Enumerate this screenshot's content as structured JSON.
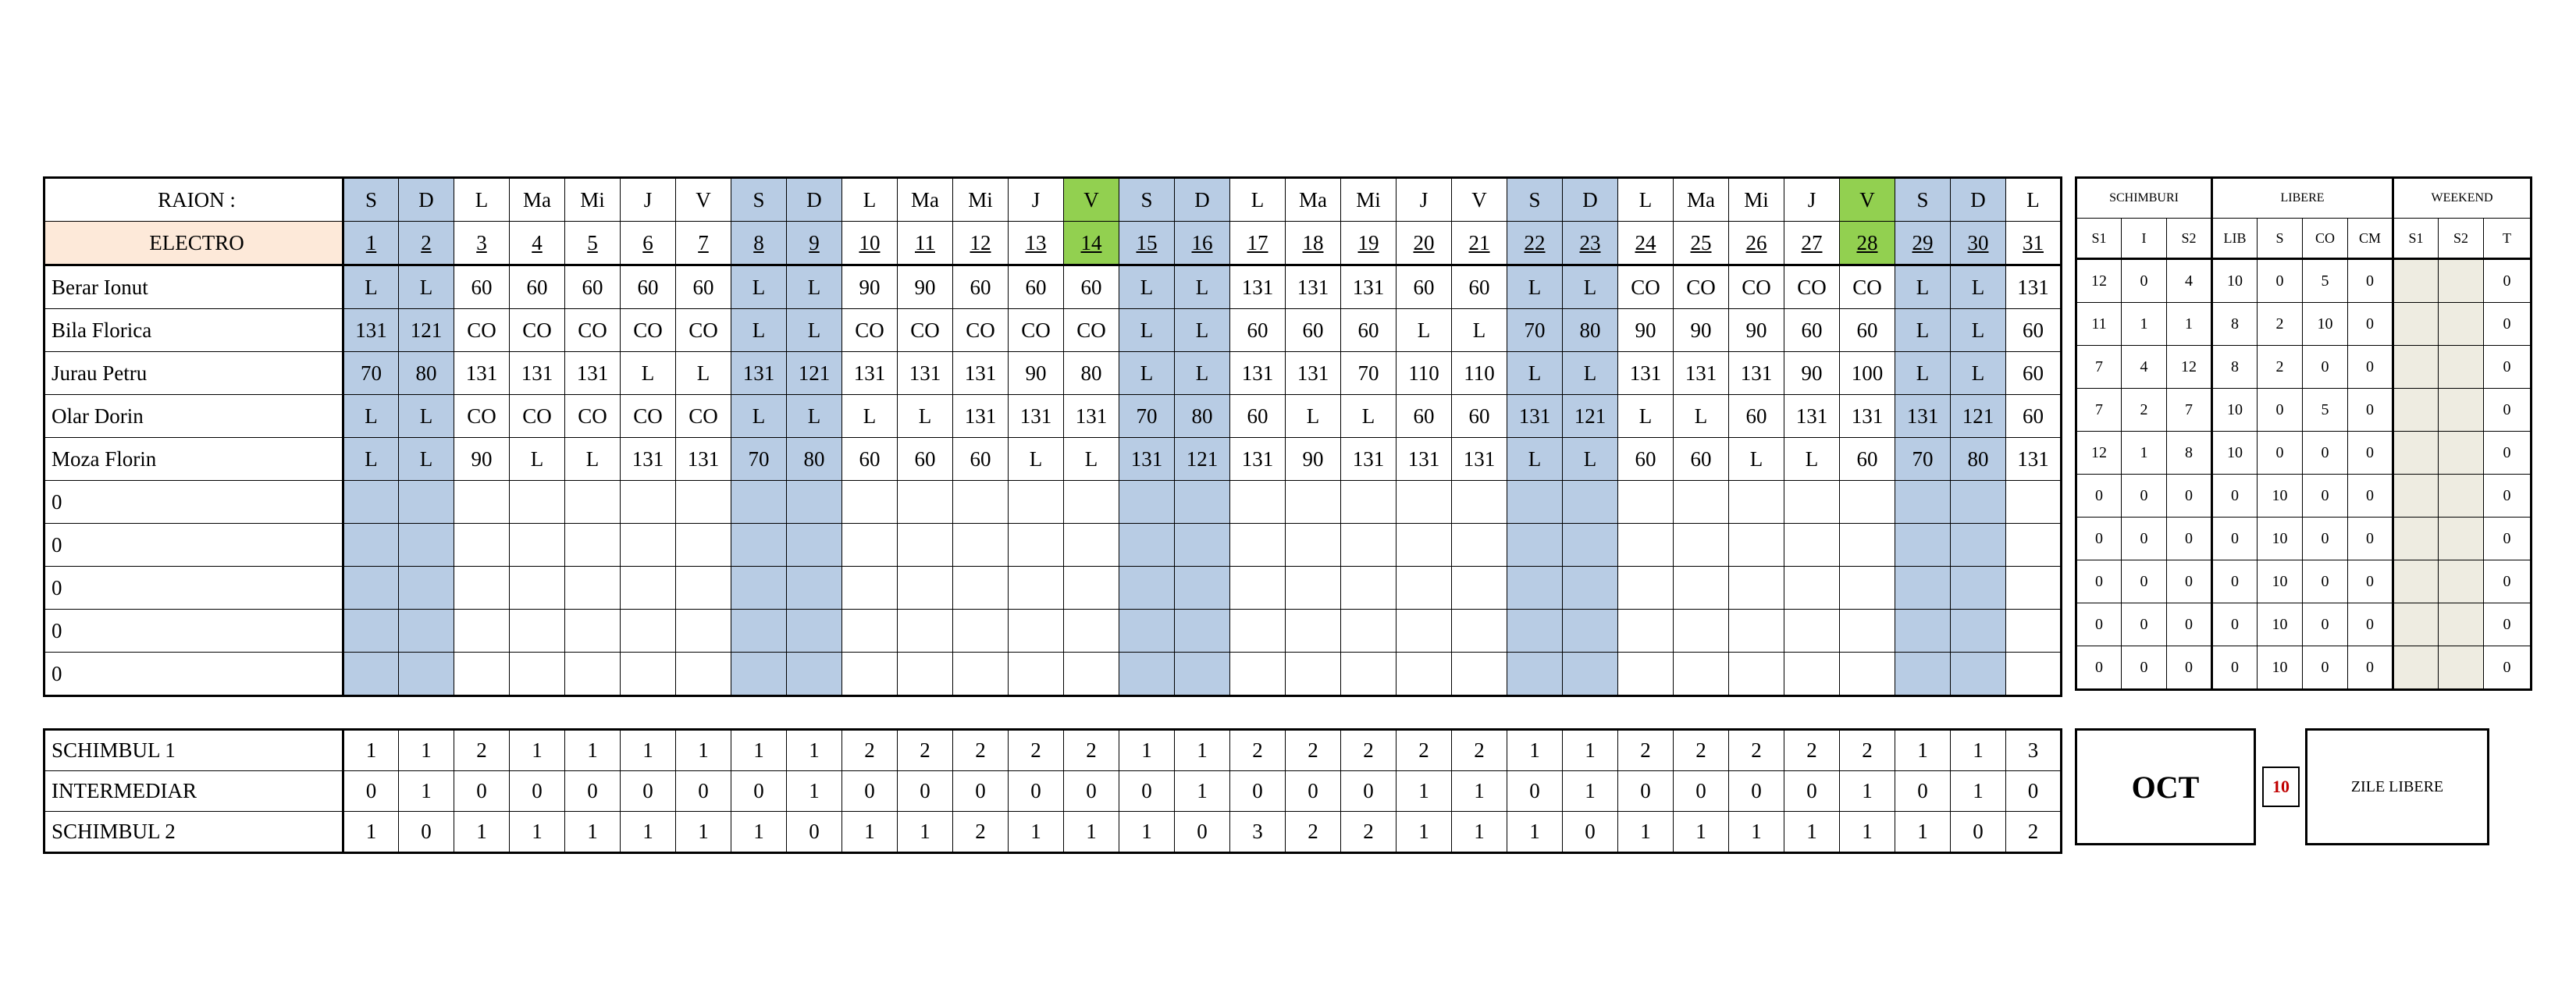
{
  "header": {
    "raion_label": "RAION :",
    "dept": "ELECTRO"
  },
  "days": [
    {
      "w": "S",
      "d": "1",
      "t": "wk"
    },
    {
      "w": "D",
      "d": "2",
      "t": "wk"
    },
    {
      "w": "L",
      "d": "3",
      "t": ""
    },
    {
      "w": "Ma",
      "d": "4",
      "t": ""
    },
    {
      "w": "Mi",
      "d": "5",
      "t": ""
    },
    {
      "w": "J",
      "d": "6",
      "t": ""
    },
    {
      "w": "V",
      "d": "7",
      "t": ""
    },
    {
      "w": "S",
      "d": "8",
      "t": "wk"
    },
    {
      "w": "D",
      "d": "9",
      "t": "wk"
    },
    {
      "w": "L",
      "d": "10",
      "t": ""
    },
    {
      "w": "Ma",
      "d": "11",
      "t": ""
    },
    {
      "w": "Mi",
      "d": "12",
      "t": ""
    },
    {
      "w": "J",
      "d": "13",
      "t": ""
    },
    {
      "w": "V",
      "d": "14",
      "t": "hol"
    },
    {
      "w": "S",
      "d": "15",
      "t": "wk"
    },
    {
      "w": "D",
      "d": "16",
      "t": "wk"
    },
    {
      "w": "L",
      "d": "17",
      "t": ""
    },
    {
      "w": "Ma",
      "d": "18",
      "t": ""
    },
    {
      "w": "Mi",
      "d": "19",
      "t": ""
    },
    {
      "w": "J",
      "d": "20",
      "t": ""
    },
    {
      "w": "V",
      "d": "21",
      "t": ""
    },
    {
      "w": "S",
      "d": "22",
      "t": "wk"
    },
    {
      "w": "D",
      "d": "23",
      "t": "wk"
    },
    {
      "w": "L",
      "d": "24",
      "t": ""
    },
    {
      "w": "Ma",
      "d": "25",
      "t": ""
    },
    {
      "w": "Mi",
      "d": "26",
      "t": ""
    },
    {
      "w": "J",
      "d": "27",
      "t": ""
    },
    {
      "w": "V",
      "d": "28",
      "t": "hol"
    },
    {
      "w": "S",
      "d": "29",
      "t": "wk"
    },
    {
      "w": "D",
      "d": "30",
      "t": "wk"
    },
    {
      "w": "L",
      "d": "31",
      "t": ""
    }
  ],
  "employees": [
    {
      "name": "Berar Ionut",
      "shifts": [
        "L",
        "L",
        "60",
        "60",
        "60",
        "60",
        "60",
        "L",
        "L",
        "90",
        "90",
        "60",
        "60",
        "60",
        "L",
        "L",
        "131",
        "131",
        "131",
        "60",
        "60",
        "L",
        "L",
        "CO",
        "CO",
        "CO",
        "CO",
        "CO",
        "L",
        "L",
        "131"
      ],
      "summary": [
        "12",
        "0",
        "4",
        "10",
        "0",
        "5",
        "0",
        "",
        "",
        "0"
      ]
    },
    {
      "name": "Bila Florica",
      "shifts": [
        "131",
        "121",
        "CO",
        "CO",
        "CO",
        "CO",
        "CO",
        "L",
        "L",
        "CO",
        "CO",
        "CO",
        "CO",
        "CO",
        "L",
        "L",
        "60",
        "60",
        "60",
        "L",
        "L",
        "70",
        "80",
        "90",
        "90",
        "90",
        "60",
        "60",
        "L",
        "L",
        "60"
      ],
      "summary": [
        "11",
        "1",
        "1",
        "8",
        "2",
        "10",
        "0",
        "",
        "",
        "0"
      ]
    },
    {
      "name": "Jurau Petru",
      "shifts": [
        "70",
        "80",
        "131",
        "131",
        "131",
        "L",
        "L",
        "131",
        "121",
        "131",
        "131",
        "131",
        "90",
        "80",
        "L",
        "L",
        "131",
        "131",
        "70",
        "110",
        "110",
        "L",
        "L",
        "131",
        "131",
        "131",
        "90",
        "100",
        "L",
        "L",
        "60"
      ],
      "summary": [
        "7",
        "4",
        "12",
        "8",
        "2",
        "0",
        "0",
        "",
        "",
        "0"
      ]
    },
    {
      "name": "Olar Dorin",
      "shifts": [
        "L",
        "L",
        "CO",
        "CO",
        "CO",
        "CO",
        "CO",
        "L",
        "L",
        "L",
        "L",
        "131",
        "131",
        "131",
        "70",
        "80",
        "60",
        "L",
        "L",
        "60",
        "60",
        "131",
        "121",
        "L",
        "L",
        "60",
        "131",
        "131",
        "131",
        "121",
        "60"
      ],
      "summary": [
        "7",
        "2",
        "7",
        "10",
        "0",
        "5",
        "0",
        "",
        "",
        "0"
      ]
    },
    {
      "name": "Moza Florin",
      "shifts": [
        "L",
        "L",
        "90",
        "L",
        "L",
        "131",
        "131",
        "70",
        "80",
        "60",
        "60",
        "60",
        "L",
        "L",
        "131",
        "121",
        "131",
        "90",
        "131",
        "131",
        "131",
        "L",
        "L",
        "60",
        "60",
        "L",
        "L",
        "60",
        "70",
        "80",
        "131"
      ],
      "summary": [
        "12",
        "1",
        "8",
        "10",
        "0",
        "0",
        "0",
        "",
        "",
        "0"
      ]
    },
    {
      "name": "0",
      "shifts": [],
      "summary": [
        "0",
        "0",
        "0",
        "0",
        "10",
        "0",
        "0",
        "",
        "",
        "0"
      ]
    },
    {
      "name": "0",
      "shifts": [],
      "summary": [
        "0",
        "0",
        "0",
        "0",
        "10",
        "0",
        "0",
        "",
        "",
        "0"
      ]
    },
    {
      "name": "0",
      "shifts": [],
      "summary": [
        "0",
        "0",
        "0",
        "0",
        "10",
        "0",
        "0",
        "",
        "",
        "0"
      ]
    },
    {
      "name": "0",
      "shifts": [],
      "summary": [
        "0",
        "0",
        "0",
        "0",
        "10",
        "0",
        "0",
        "",
        "",
        "0"
      ]
    },
    {
      "name": "0",
      "shifts": [],
      "summary": [
        "0",
        "0",
        "0",
        "0",
        "10",
        "0",
        "0",
        "",
        "",
        "0"
      ]
    }
  ],
  "summary_header": {
    "groups": [
      "SCHIMBURI",
      "LIBERE",
      "WEEKEND"
    ],
    "cols": [
      "S1",
      "I",
      "S2",
      "LIB",
      "S",
      "CO",
      "CM",
      "S1",
      "S2",
      "T"
    ]
  },
  "shift_counts": [
    {
      "label": "SCHIMBUL 1",
      "values": [
        "1",
        "1",
        "2",
        "1",
        "1",
        "1",
        "1",
        "1",
        "1",
        "2",
        "2",
        "2",
        "2",
        "2",
        "1",
        "1",
        "2",
        "2",
        "2",
        "2",
        "2",
        "1",
        "1",
        "2",
        "2",
        "2",
        "2",
        "2",
        "1",
        "1",
        "3"
      ]
    },
    {
      "label": "INTERMEDIAR",
      "values": [
        "0",
        "1",
        "0",
        "0",
        "0",
        "0",
        "0",
        "0",
        "1",
        "0",
        "0",
        "0",
        "0",
        "0",
        "0",
        "1",
        "0",
        "0",
        "0",
        "1",
        "1",
        "0",
        "1",
        "0",
        "0",
        "0",
        "0",
        "1",
        "0",
        "1",
        "0"
      ]
    },
    {
      "label": "SCHIMBUL 2",
      "values": [
        "1",
        "0",
        "1",
        "1",
        "1",
        "1",
        "1",
        "1",
        "0",
        "1",
        "1",
        "2",
        "1",
        "1",
        "1",
        "0",
        "3",
        "2",
        "2",
        "1",
        "1",
        "1",
        "0",
        "1",
        "1",
        "1",
        "1",
        "1",
        "1",
        "0",
        "2"
      ]
    }
  ],
  "month": "OCT",
  "free_days_count": "10",
  "free_days_label": "ZILE LIBERE"
}
